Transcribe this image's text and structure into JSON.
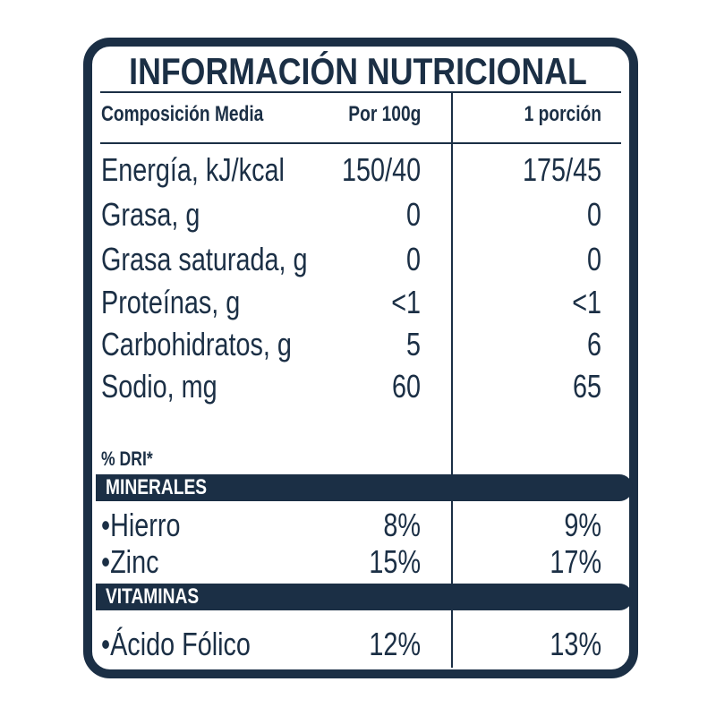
{
  "title": "INFORMACIÓN NUTRICIONAL",
  "header": [
    "Composición Media",
    "Por 100g",
    "1 porción"
  ],
  "rows": [
    [
      "Energía, kJ/kcal",
      "150/40",
      "175/45"
    ],
    [
      "Grasa, g",
      "0",
      "0"
    ],
    [
      "Grasa saturada, g",
      "0",
      "0"
    ],
    [
      "Proteínas, g",
      "<1",
      "<1"
    ],
    [
      "Carbohidratos, g",
      "5",
      "6"
    ],
    [
      "Sodio, mg",
      "60",
      "65"
    ]
  ],
  "dri_note": "% DRI*",
  "sections": [
    {
      "title": "MINERALES",
      "rows": [
        [
          "•Hierro",
          "8%",
          "9%"
        ],
        [
          "•Zinc",
          "15%",
          "17%"
        ]
      ]
    },
    {
      "title": "VITAMINAS",
      "rows": [
        [
          "•Ácido Fólico",
          "12%",
          "13%"
        ]
      ]
    }
  ]
}
